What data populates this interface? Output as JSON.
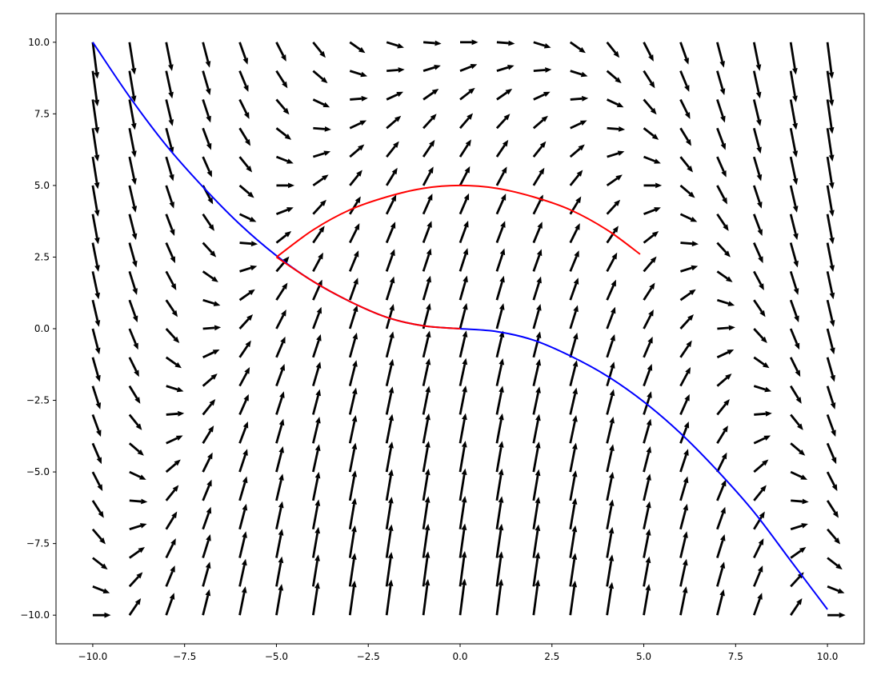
{
  "chart_data": {
    "type": "quiver",
    "title": "",
    "xlabel": "",
    "ylabel": "",
    "xlim": [
      -11,
      11
    ],
    "ylim": [
      -11,
      11
    ],
    "grid": false,
    "x_ticks": [
      -10.0,
      -7.5,
      -5.0,
      -2.5,
      0.0,
      2.5,
      5.0,
      7.5,
      10.0
    ],
    "y_ticks": [
      -10.0,
      -7.5,
      -5.0,
      -2.5,
      0.0,
      2.5,
      5.0,
      7.5,
      10.0
    ],
    "x_tick_labels": [
      "−10.0",
      "−7.5",
      "−5.0",
      "−2.5",
      "0.0",
      "2.5",
      "5.0",
      "7.5",
      "10.0"
    ],
    "y_tick_labels": [
      "−10.0",
      "−7.5",
      "−5.0",
      "−2.5",
      "0.0",
      "2.5",
      "5.0",
      "7.5",
      "10.0"
    ],
    "vector_field": {
      "x_range": [
        -10,
        10
      ],
      "y_range": [
        -10,
        10
      ],
      "count_x": 21,
      "count_y": 21,
      "dx": 1,
      "dy": "-x*x/10 - y/2 + 5",
      "color": "#000000"
    },
    "series": [
      {
        "color": "#0000ff",
        "x": [
          -10,
          -9,
          -8,
          -7,
          -6,
          -5,
          -4,
          -3,
          -2,
          -1,
          0,
          1,
          2,
          3,
          4,
          5,
          6,
          7,
          8,
          9,
          10
        ],
        "y": [
          10,
          8.1,
          6.4,
          4.95,
          3.65,
          2.55,
          1.65,
          0.95,
          0.4,
          0.1,
          0,
          -0.1,
          -0.4,
          -0.95,
          -1.65,
          -2.55,
          -3.65,
          -4.95,
          -6.4,
          -8.1,
          -9.8
        ]
      },
      {
        "color": "#ff0000",
        "x": [
          -5,
          -4,
          -3,
          -2,
          -1,
          0,
          1,
          2,
          3,
          4,
          4.9
        ],
        "y": [
          2.5,
          3.45,
          4.15,
          4.6,
          4.9,
          5,
          4.9,
          4.6,
          4.15,
          3.45,
          2.6
        ]
      },
      {
        "color": "#ff0000",
        "x": [
          -5,
          -4,
          -3,
          -2,
          -1,
          0
        ],
        "y": [
          2.5,
          1.65,
          0.95,
          0.4,
          0.1,
          0
        ]
      }
    ]
  }
}
